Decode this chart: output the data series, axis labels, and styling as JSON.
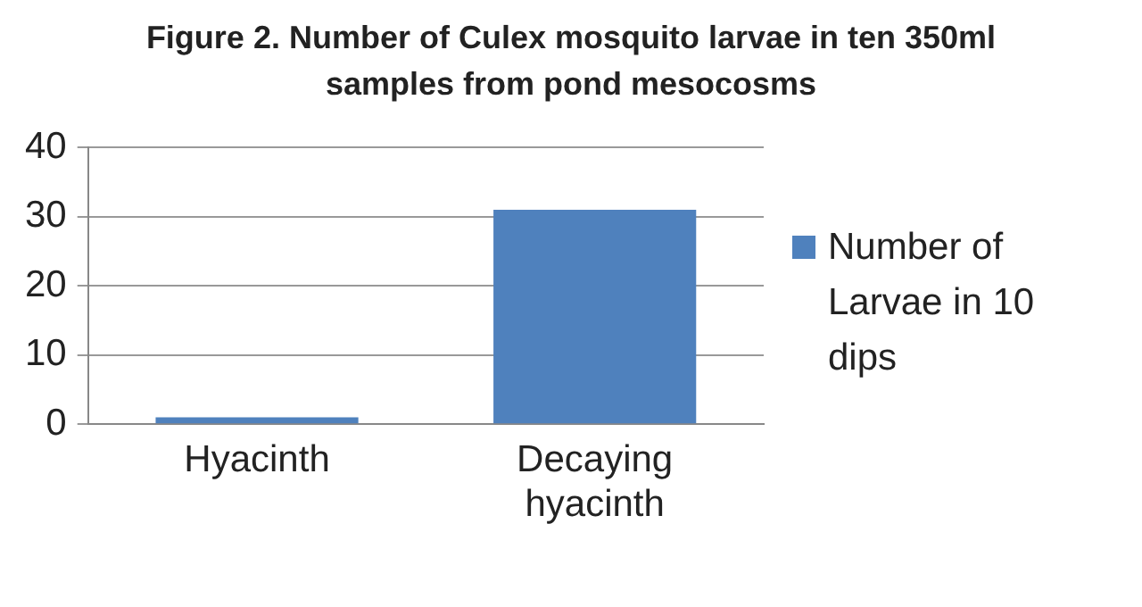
{
  "chart_data": {
    "type": "bar",
    "title": "Figure 2. Number of Culex mosquito larvae in ten 350ml samples from pond mesocosms",
    "categories": [
      "Hyacinth",
      "Decaying hyacinth"
    ],
    "series": [
      {
        "name": "Number of Larvae in 10 dips",
        "color": "#4f81bd",
        "values": [
          1,
          31
        ]
      }
    ],
    "ylim": [
      0,
      40
    ],
    "yticks": [
      0,
      10,
      20,
      30,
      40
    ],
    "grid": "y",
    "legend": "right"
  }
}
